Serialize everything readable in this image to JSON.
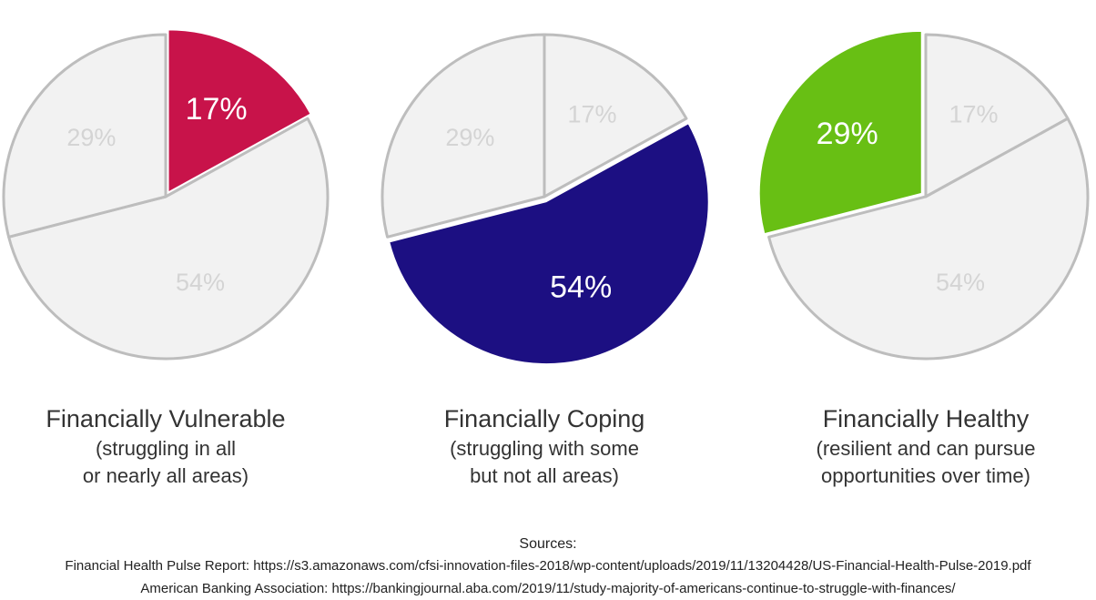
{
  "chart_data": [
    {
      "type": "pie",
      "title": "Financially Vulnerable",
      "subtitle": [
        "(struggling in all",
        "or nearly all areas)"
      ],
      "values": [
        17,
        54,
        29
      ],
      "value_labels": [
        "17%",
        "54%",
        "29%"
      ],
      "colors": [
        "#c8134a",
        "#f2f2f2",
        "#f2f2f2"
      ]
    },
    {
      "type": "pie",
      "title": "Financially Coping",
      "subtitle": [
        "(struggling with some",
        "but not all areas)"
      ],
      "values": [
        17,
        54,
        29
      ],
      "value_labels": [
        "17%",
        "54%",
        "29%"
      ],
      "colors": [
        "#f2f2f2",
        "#1c0f82",
        "#f2f2f2"
      ]
    },
    {
      "type": "pie",
      "title": "Financially Healthy",
      "subtitle": [
        "(resilient and can pursue",
        "opportunities over time)"
      ],
      "values": [
        17,
        54,
        29
      ],
      "value_labels": [
        "17%",
        "54%",
        "29%"
      ],
      "colors": [
        "#f2f2f2",
        "#f2f2f2",
        "#68bf14"
      ]
    }
  ],
  "sources": {
    "title": "Sources:",
    "lines": [
      "Financial Health Pulse Report: https://s3.amazonaws.com/cfsi-innovation-files-2018/wp-content/uploads/2019/11/13204428/US-Financial-Health-Pulse-2019.pdf",
      "American Banking Association: https://bankingjournal.aba.com/2019/11/study-majority-of-americans-continue-to-struggle-with-finances/"
    ]
  }
}
